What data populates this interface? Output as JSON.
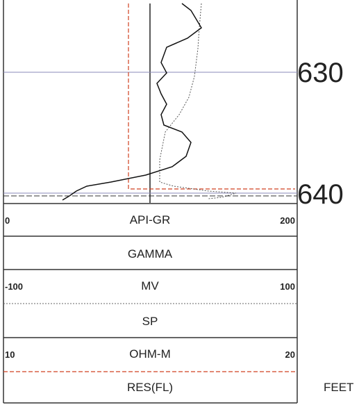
{
  "depth_labels": [
    "630",
    "640"
  ],
  "units": "FEET",
  "header_rows": [
    {
      "left": "0",
      "name": "API-GR",
      "right": "200"
    },
    {
      "name": "GAMMA"
    },
    {
      "left": "-100",
      "name": "MV",
      "right": "100"
    },
    {
      "name": "SP"
    },
    {
      "left": "10",
      "name": "OHM-M",
      "right": "20"
    },
    {
      "name": "RES(FL)"
    }
  ]
}
